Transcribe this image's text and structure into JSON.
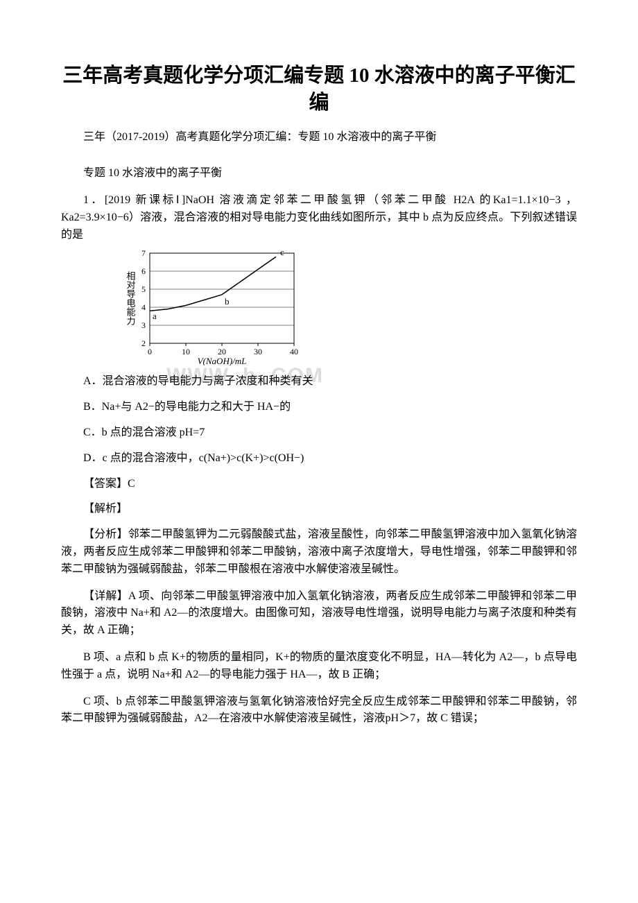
{
  "title": "三年高考真题化学分项汇编专题 10 水溶液中的离子平衡汇编",
  "subtitle": "三年（2017-2019）高考真题化学分项汇编：专题 10 水溶液中的离子平衡",
  "section": "专题 10 水溶液中的离子平衡",
  "question_intro": "1．[2019 新课标Ⅰ]NaOH 溶液滴定邻苯二甲酸氢钾（邻苯二甲酸 H2A 的Ka1=1.1×10−3 ，Ka2=3.9×10−6）溶液，混合溶液的相对导电能力变化曲线如图所示，其中 b 点为反应终点。下列叙述错误的是",
  "chart": {
    "type": "line",
    "x_label": "V(NaOH)/mL",
    "y_label": "相对导电能力",
    "x_ticks": [
      0,
      10,
      20,
      30,
      40
    ],
    "y_ticks": [
      2,
      3,
      4,
      5,
      6,
      7
    ],
    "xlim": [
      0,
      40
    ],
    "ylim": [
      2,
      7
    ],
    "points": {
      "a": {
        "x": 0,
        "y": 3.8,
        "label": "a"
      },
      "b": {
        "x": 20,
        "y": 4.7,
        "label": "b"
      },
      "c": {
        "x": 35,
        "y": 6.8,
        "label": "c"
      }
    },
    "line_data": [
      {
        "x": 0,
        "y": 3.8
      },
      {
        "x": 5,
        "y": 3.9
      },
      {
        "x": 10,
        "y": 4.1
      },
      {
        "x": 15,
        "y": 4.4
      },
      {
        "x": 20,
        "y": 4.7
      },
      {
        "x": 25,
        "y": 5.4
      },
      {
        "x": 30,
        "y": 6.1
      },
      {
        "x": 35,
        "y": 6.8
      }
    ],
    "axis_color": "#000000",
    "line_color": "#000000",
    "line_width": 1.5,
    "grid": false,
    "background": "#ffffff",
    "font_size_axis": 12,
    "font_size_label": 13
  },
  "options": {
    "A": "A．混合溶液的导电能力与离子浓度和种类有关",
    "B": "B．Na+与 A2−的导电能力之和大于 HA−的",
    "C": "C．b 点的混合溶液 pH=7",
    "D": "D．c 点的混合溶液中，c(Na+)>c(K+)>c(OH−)"
  },
  "answer_label": "【答案】C",
  "analysis_label": "【解析】",
  "fenxi": "【分析】邻苯二甲酸氢钾为二元弱酸酸式盐，溶液呈酸性，向邻苯二甲酸氢钾溶液中加入氢氧化钠溶液，两者反应生成邻苯二甲酸钾和邻苯二甲酸钠，溶液中离子浓度增大，导电性增强，邻苯二甲酸钾和邻苯二甲酸钠为强碱弱酸盐，邻苯二甲酸根在溶液中水解使溶液呈碱性。",
  "detail_A": "【详解】A 项、向邻苯二甲酸氢钾溶液中加入氢氧化钠溶液，两者反应生成邻苯二甲酸钾和邻苯二甲酸钠，溶液中 Na+和 A2—的浓度增大。由图像可知，溶液导电性增强，说明导电能力与离子浓度和种类有关，故 A 正确；",
  "detail_B": "B 项、a 点和 b 点 K+的物质的量相同，K+的物质的量浓度变化不明显，HA—转化为 A2—，b 点导电性强于 a 点，说明 Na+和 A2—的导电能力强于 HA—，故 B 正确；",
  "detail_C": "C 项、b 点邻苯二甲酸氢钾溶液与氢氧化钠溶液恰好完全反应生成邻苯二甲酸钾和邻苯二甲酸钠，邻苯二甲酸钾为强碱弱酸盐，A2—在溶液中水解使溶液呈碱性，溶液pH＞7，故 C 错误；",
  "watermark": "WWW. b      .COM"
}
